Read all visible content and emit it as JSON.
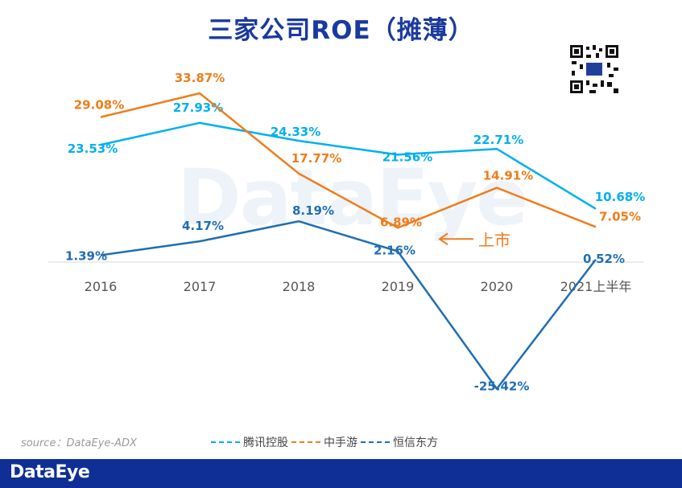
{
  "title": "三家公司ROE（摊薄）",
  "source": "source：DataEye-ADX",
  "watermark": "DataEye",
  "footer_logo": "DataEye",
  "annotation": "上市",
  "colors": {
    "tencent": "#00b0f0",
    "zsy": "#f07d1a",
    "hengxin": "#1f6eb4",
    "title": "#1a3a9e",
    "footer": "#0f2f96"
  },
  "chart_data": {
    "type": "line",
    "categories": [
      "2016",
      "2017",
      "2018",
      "2019",
      "2020",
      "2021上半年"
    ],
    "series": [
      {
        "name": "腾讯控股",
        "values": [
          23.53,
          27.93,
          24.33,
          21.56,
          22.71,
          10.68
        ],
        "labels": [
          "23.53%",
          "27.93%",
          "24.33%",
          "21.56%",
          "22.71%",
          "10.68%"
        ]
      },
      {
        "name": "中手游",
        "values": [
          29.08,
          33.87,
          17.77,
          6.89,
          14.91,
          7.05
        ],
        "labels": [
          "29.08%",
          "33.87%",
          "17.77%",
          "6.89%",
          "14.91%",
          "7.05%"
        ]
      },
      {
        "name": "恒信东方",
        "values": [
          1.39,
          4.17,
          8.19,
          2.16,
          -25.42,
          0.52
        ],
        "labels": [
          "1.39%",
          "4.17%",
          "8.19%",
          "2.16%",
          "-25.42%",
          "0.52%"
        ]
      }
    ],
    "grid": false,
    "legend_position": "bottom"
  }
}
